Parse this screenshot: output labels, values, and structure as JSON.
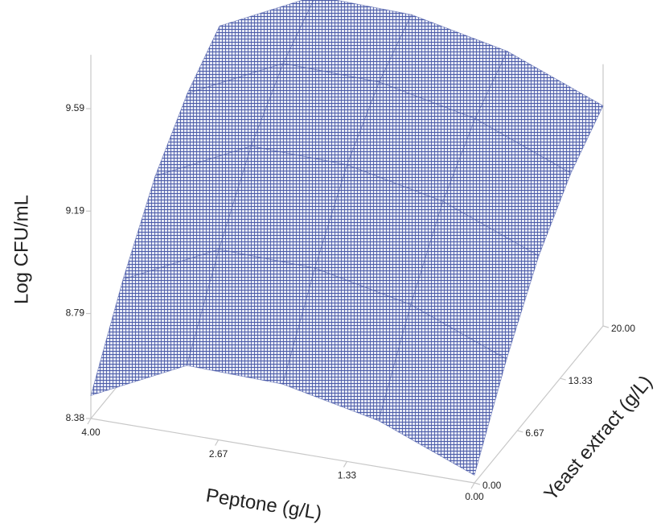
{
  "chart_data": {
    "type": "surface",
    "xlabel": "Peptone (g/L)",
    "ylabel": "Yeast extract (g/L)",
    "zlabel": "Log CFU/mL",
    "x": [
      0,
      1,
      2,
      3,
      4
    ],
    "y": [
      0,
      5,
      10,
      15,
      20
    ],
    "z": [
      [
        8.41,
        8.56,
        8.64,
        8.65,
        8.47
      ],
      [
        8.71,
        8.86,
        8.94,
        8.95,
        8.77
      ],
      [
        8.96,
        9.11,
        9.19,
        9.2,
        9.02
      ],
      [
        9.13,
        9.28,
        9.36,
        9.37,
        9.19
      ],
      [
        9.24,
        9.39,
        9.47,
        9.48,
        9.3
      ]
    ],
    "xlim": [
      0,
      4
    ],
    "ylim": [
      0,
      20
    ],
    "zlim": [
      8.38,
      9.8
    ],
    "xticks": [
      {
        "value": 4,
        "label": "4.00"
      },
      2.67,
      1.33,
      {
        "value": 0,
        "label": "0.00"
      }
    ],
    "yticks": [
      {
        "value": 0,
        "label": "0.00"
      },
      6.67,
      13.33,
      {
        "value": 20,
        "label": "20.00"
      }
    ],
    "zticks": [
      8.38,
      8.79,
      9.19,
      9.59
    ],
    "color": "#4a5aa8"
  }
}
